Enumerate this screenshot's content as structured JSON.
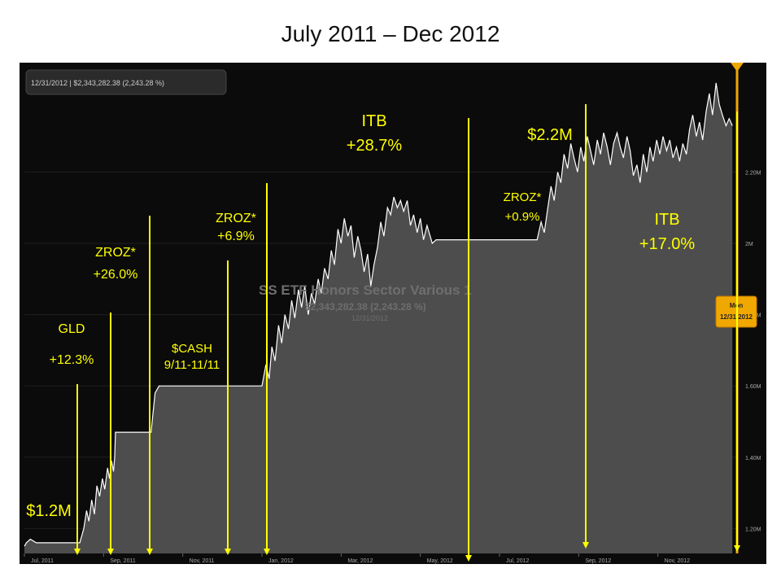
{
  "title": "July 2011 – Dec 2012",
  "header_readout": "12/31/2012 | $2,343,282.38 (2,243.28 %)",
  "watermark": {
    "name": "SS ETF Honors Sector Various 1",
    "value": "$2,343,282.38 (2,243.28 %)",
    "date": "12/31/2012"
  },
  "cursor_label": {
    "day": "Mon",
    "date": "12/31/2012"
  },
  "annotations": [
    {
      "lines": [
        "GLD",
        "+12.3%"
      ],
      "color": "#ffff00"
    },
    {
      "lines": [
        "ZROZ*",
        "+26.0%"
      ],
      "color": "#ffff00"
    },
    {
      "lines": [
        "$CASH",
        "9/11-11/11"
      ],
      "color": "#ffff00"
    },
    {
      "lines": [
        "ZROZ*",
        "+6.9%"
      ],
      "color": "#ffff00"
    },
    {
      "lines": [
        "ITB",
        "+28.7%"
      ],
      "color": "#ffff00"
    },
    {
      "lines": [
        "ZROZ*",
        "+0.9%"
      ],
      "color": "#ffff00"
    },
    {
      "lines": [
        "ITB",
        "+17.0%"
      ],
      "color": "#ffff00"
    },
    {
      "lines": [
        "$1.2M"
      ],
      "color": "#ffff00"
    },
    {
      "lines": [
        "$2.2M"
      ],
      "color": "#ffff00"
    }
  ],
  "chart_data": {
    "type": "area",
    "series_name": "SS ETF Honors Sector Various 1",
    "x_ticks": [
      "Jul, 2011",
      "Sep, 2011",
      "Nov, 2011",
      "Jan, 2012",
      "Mar, 2012",
      "May, 2012",
      "Jul, 2012",
      "Sep, 2012",
      "Nov, 2012"
    ],
    "y_ticks": [
      "1.20M",
      "1.40M",
      "1.60M",
      "1.80M",
      "2M",
      "2.20M"
    ],
    "x_range_months": [
      0,
      18
    ],
    "ylim": [
      1.13,
      2.5
    ],
    "points": [
      [
        0.0,
        1.15
      ],
      [
        0.05,
        1.16
      ],
      [
        0.15,
        1.17
      ],
      [
        0.3,
        1.16
      ],
      [
        0.5,
        1.16
      ],
      [
        0.8,
        1.16
      ],
      [
        1.0,
        1.16
      ],
      [
        1.2,
        1.16
      ],
      [
        1.4,
        1.16
      ],
      [
        1.5,
        1.2
      ],
      [
        1.57,
        1.25
      ],
      [
        1.63,
        1.22
      ],
      [
        1.7,
        1.28
      ],
      [
        1.77,
        1.24
      ],
      [
        1.83,
        1.32
      ],
      [
        1.9,
        1.29
      ],
      [
        1.97,
        1.34
      ],
      [
        2.03,
        1.31
      ],
      [
        2.1,
        1.37
      ],
      [
        2.15,
        1.34
      ],
      [
        2.2,
        1.39
      ],
      [
        2.25,
        1.36
      ],
      [
        2.28,
        1.4
      ],
      [
        2.3,
        1.47
      ],
      [
        3.2,
        1.47
      ],
      [
        3.3,
        1.58
      ],
      [
        3.4,
        1.6
      ],
      [
        4.0,
        1.6
      ],
      [
        4.5,
        1.6
      ],
      [
        5.0,
        1.6
      ],
      [
        5.5,
        1.6
      ],
      [
        6.0,
        1.6
      ],
      [
        6.1,
        1.66
      ],
      [
        6.18,
        1.62
      ],
      [
        6.25,
        1.71
      ],
      [
        6.33,
        1.67
      ],
      [
        6.42,
        1.77
      ],
      [
        6.5,
        1.72
      ],
      [
        6.58,
        1.8
      ],
      [
        6.67,
        1.76
      ],
      [
        6.75,
        1.84
      ],
      [
        6.83,
        1.79
      ],
      [
        6.92,
        1.87
      ],
      [
        7.0,
        1.82
      ],
      [
        7.08,
        1.88
      ],
      [
        7.17,
        1.8
      ],
      [
        7.25,
        1.86
      ],
      [
        7.33,
        1.83
      ],
      [
        7.42,
        1.9
      ],
      [
        7.5,
        1.86
      ],
      [
        7.58,
        1.93
      ],
      [
        7.67,
        1.9
      ],
      [
        7.75,
        1.98
      ],
      [
        7.83,
        1.94
      ],
      [
        7.92,
        2.04
      ],
      [
        8.0,
        2.0
      ],
      [
        8.08,
        2.07
      ],
      [
        8.17,
        2.02
      ],
      [
        8.25,
        2.05
      ],
      [
        8.33,
        1.96
      ],
      [
        8.42,
        2.02
      ],
      [
        8.5,
        1.98
      ],
      [
        8.58,
        1.92
      ],
      [
        8.67,
        1.97
      ],
      [
        8.75,
        1.88
      ],
      [
        8.83,
        1.94
      ],
      [
        8.92,
        1.99
      ],
      [
        9.0,
        2.06
      ],
      [
        9.08,
        2.02
      ],
      [
        9.17,
        2.1
      ],
      [
        9.25,
        2.08
      ],
      [
        9.33,
        2.13
      ],
      [
        9.42,
        2.1
      ],
      [
        9.5,
        2.12
      ],
      [
        9.58,
        2.09
      ],
      [
        9.67,
        2.12
      ],
      [
        9.75,
        2.05
      ],
      [
        9.83,
        2.08
      ],
      [
        9.92,
        2.03
      ],
      [
        10.0,
        2.07
      ],
      [
        10.08,
        2.01
      ],
      [
        10.17,
        2.05
      ],
      [
        10.25,
        2.02
      ],
      [
        10.3,
        2.0
      ],
      [
        10.4,
        2.01
      ],
      [
        11.0,
        2.01
      ],
      [
        11.5,
        2.01
      ],
      [
        12.0,
        2.01
      ],
      [
        12.5,
        2.01
      ],
      [
        12.95,
        2.01
      ],
      [
        13.05,
        2.06
      ],
      [
        13.13,
        2.03
      ],
      [
        13.22,
        2.1
      ],
      [
        13.3,
        2.16
      ],
      [
        13.38,
        2.12
      ],
      [
        13.47,
        2.2
      ],
      [
        13.55,
        2.17
      ],
      [
        13.63,
        2.25
      ],
      [
        13.72,
        2.21
      ],
      [
        13.8,
        2.28
      ],
      [
        13.88,
        2.24
      ],
      [
        13.97,
        2.2
      ],
      [
        14.05,
        2.27
      ],
      [
        14.13,
        2.23
      ],
      [
        14.22,
        2.3
      ],
      [
        14.3,
        2.26
      ],
      [
        14.38,
        2.22
      ],
      [
        14.47,
        2.29
      ],
      [
        14.55,
        2.25
      ],
      [
        14.63,
        2.31
      ],
      [
        14.72,
        2.27
      ],
      [
        14.8,
        2.22
      ],
      [
        14.88,
        2.28
      ],
      [
        14.97,
        2.31
      ],
      [
        15.05,
        2.27
      ],
      [
        15.13,
        2.24
      ],
      [
        15.22,
        2.3
      ],
      [
        15.3,
        2.26
      ],
      [
        15.38,
        2.19
      ],
      [
        15.47,
        2.22
      ],
      [
        15.55,
        2.17
      ],
      [
        15.63,
        2.25
      ],
      [
        15.72,
        2.2
      ],
      [
        15.8,
        2.27
      ],
      [
        15.88,
        2.23
      ],
      [
        15.97,
        2.29
      ],
      [
        16.05,
        2.25
      ],
      [
        16.13,
        2.3
      ],
      [
        16.22,
        2.26
      ],
      [
        16.3,
        2.29
      ],
      [
        16.38,
        2.24
      ],
      [
        16.47,
        2.27
      ],
      [
        16.55,
        2.23
      ],
      [
        16.63,
        2.28
      ],
      [
        16.72,
        2.25
      ],
      [
        16.8,
        2.32
      ],
      [
        16.88,
        2.36
      ],
      [
        16.97,
        2.3
      ],
      [
        17.05,
        2.34
      ],
      [
        17.13,
        2.29
      ],
      [
        17.22,
        2.37
      ],
      [
        17.3,
        2.42
      ],
      [
        17.38,
        2.36
      ],
      [
        17.47,
        2.45
      ],
      [
        17.55,
        2.39
      ],
      [
        17.63,
        2.36
      ],
      [
        17.72,
        2.33
      ],
      [
        17.8,
        2.35
      ],
      [
        17.88,
        2.33
      ]
    ]
  }
}
